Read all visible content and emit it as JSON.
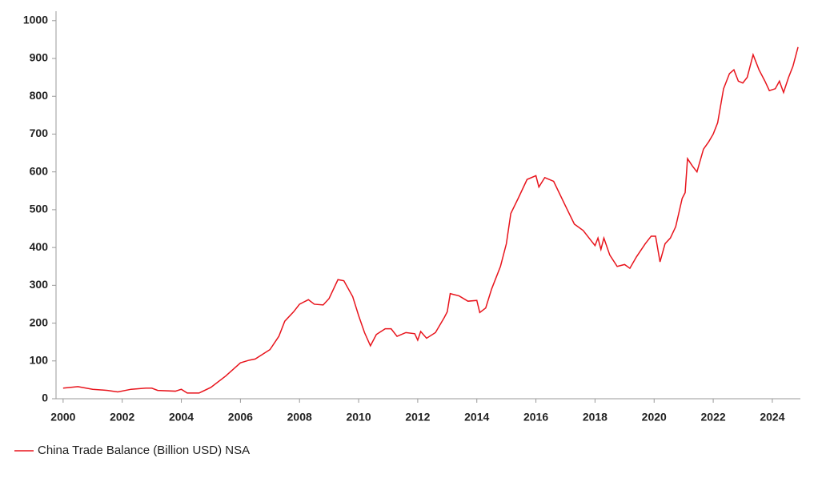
{
  "chart_data": {
    "type": "line",
    "xlim": [
      1999.76,
      2024.95
    ],
    "xticks": [
      2000,
      2002,
      2004,
      2006,
      2008,
      2010,
      2012,
      2014,
      2016,
      2018,
      2020,
      2022,
      2024
    ],
    "ylim": [
      0,
      1025
    ],
    "yticks": [
      0,
      100,
      200,
      300,
      400,
      500,
      600,
      700,
      800,
      900,
      1000
    ],
    "legend": "bottom-left",
    "series": [
      {
        "name": "China Trade Balance (Billion USD) NSA",
        "color": "#e8141c",
        "x": [
          2000,
          2000.5,
          2001,
          2001.5,
          2001.85,
          2002.3,
          2002.8,
          2003.0,
          2003.2,
          2003.8,
          2004.0,
          2004.2,
          2004.6,
          2005.0,
          2005.5,
          2006.0,
          2006.3,
          2006.5,
          2007.0,
          2007.3,
          2007.5,
          2007.8,
          2008.0,
          2008.3,
          2008.5,
          2008.8,
          2009.0,
          2009.3,
          2009.5,
          2009.8,
          2010.0,
          2010.2,
          2010.4,
          2010.6,
          2010.9,
          2011.1,
          2011.3,
          2011.6,
          2011.9,
          2012.0,
          2012.1,
          2012.3,
          2012.6,
          2012.9,
          2013.0,
          2013.1,
          2013.4,
          2013.7,
          2014.0,
          2014.1,
          2014.3,
          2014.5,
          2014.8,
          2015.0,
          2015.15,
          2015.4,
          2015.7,
          2016.0,
          2016.1,
          2016.3,
          2016.6,
          2017.0,
          2017.3,
          2017.6,
          2017.9,
          2018.0,
          2018.1,
          2018.2,
          2018.3,
          2018.5,
          2018.75,
          2019.0,
          2019.18,
          2019.4,
          2019.7,
          2019.9,
          2020.05,
          2020.2,
          2020.37,
          2020.55,
          2020.73,
          2020.95,
          2021.05,
          2021.13,
          2021.3,
          2021.45,
          2021.67,
          2021.85,
          2022.0,
          2022.15,
          2022.35,
          2022.55,
          2022.7,
          2022.85,
          2023.0,
          2023.15,
          2023.35,
          2023.55,
          2023.75,
          2023.9,
          2024.1,
          2024.24,
          2024.38,
          2024.55,
          2024.7,
          2024.87
        ],
        "values": [
          28,
          32,
          25,
          22,
          18,
          25,
          28,
          28,
          22,
          20,
          25,
          15,
          15,
          30,
          60,
          95,
          102,
          105,
          130,
          165,
          205,
          230,
          250,
          262,
          250,
          248,
          265,
          315,
          312,
          270,
          220,
          175,
          140,
          170,
          185,
          185,
          165,
          175,
          172,
          155,
          178,
          160,
          175,
          215,
          230,
          278,
          272,
          258,
          260,
          228,
          240,
          290,
          350,
          410,
          490,
          530,
          580,
          590,
          560,
          585,
          575,
          510,
          462,
          445,
          415,
          405,
          425,
          395,
          425,
          380,
          350,
          355,
          345,
          375,
          410,
          430,
          430,
          362,
          410,
          425,
          455,
          530,
          545,
          635,
          615,
          600,
          660,
          680,
          700,
          730,
          820,
          860,
          870,
          840,
          835,
          850,
          910,
          870,
          840,
          815,
          820,
          840,
          810,
          850,
          880,
          930
        ]
      }
    ]
  }
}
